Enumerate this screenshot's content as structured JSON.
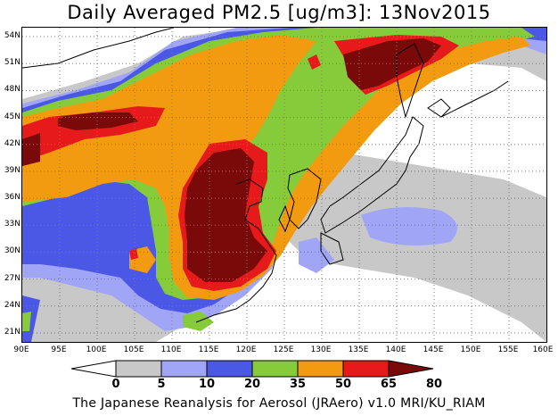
{
  "title": "Daily Averaged PM2.5 [ug/m3]: 13Nov2015",
  "footer": "The Japanese Reanalysis for Aerosol (JRAero) v1.0 MRI/KU_RIAM",
  "map": {
    "lon_range": [
      90,
      160
    ],
    "lat_range": [
      20,
      55
    ],
    "lat_labels": [
      "54N",
      "51N",
      "48N",
      "45N",
      "42N",
      "39N",
      "36N",
      "33N",
      "30N",
      "27N",
      "24N",
      "21N"
    ],
    "lon_labels": [
      "90E",
      "95E",
      "100E",
      "105E",
      "110E",
      "115E",
      "120E",
      "125E",
      "130E",
      "135E",
      "140E",
      "145E",
      "150E",
      "155E",
      "160E"
    ],
    "gridlines": "dotted"
  },
  "colorbar": {
    "labels": [
      "0",
      "5",
      "10",
      "20",
      "35",
      "50",
      "65",
      "80"
    ],
    "colors": [
      "#ffffff",
      "#c8c8c8",
      "#a0a6f5",
      "#4b58e6",
      "#86cc3a",
      "#f29a10",
      "#e61a1a",
      "#7a0a0a"
    ],
    "level_colors": {
      "0-5": "#ffffff",
      "5-10": "#c8c8c8",
      "10-20": "#a0a6f5",
      "20-35": "#4b58e6",
      "35-50": "#86cc3a",
      "50-65": "#f29a10",
      "65-80": "#e61a1a",
      "80+": "#7a0a0a"
    }
  }
}
